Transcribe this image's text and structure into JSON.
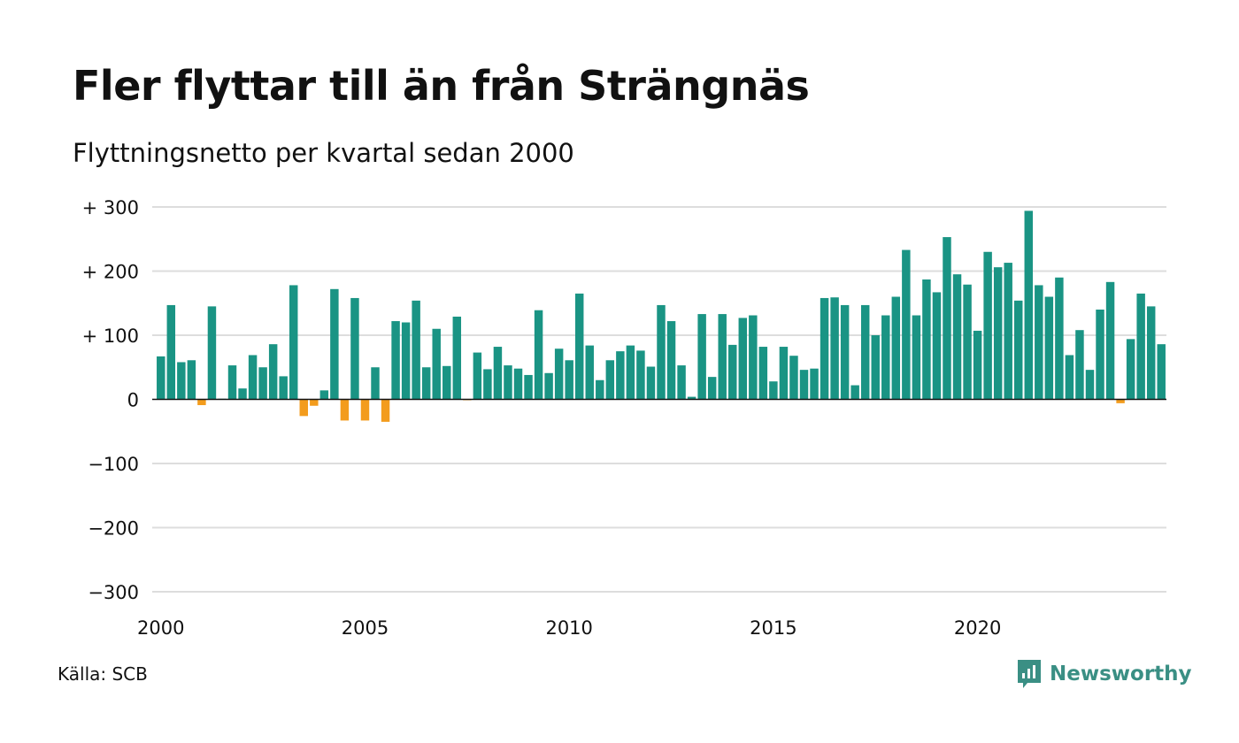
{
  "title": "Fler flyttar till än från Strängnäs",
  "subtitle": "Flyttningsnetto per kvartal sedan 2000",
  "source": "Källa: SCB",
  "brand": {
    "name": "Newsworthy",
    "icon": "newsworthy-logo-icon"
  },
  "colors": {
    "positive": "#1a9484",
    "negative": "#f39c1d",
    "grid": "#dddddd",
    "zero_line": "#111111",
    "brand": "#3a8f84"
  },
  "chart_data": {
    "type": "bar",
    "title": "Fler flyttar till än från Strängnäs",
    "subtitle": "Flyttningsnetto per kvartal sedan 2000",
    "xlabel": "",
    "ylabel": "",
    "ylim": [
      -300,
      300
    ],
    "grid": true,
    "yticks": [
      300,
      200,
      100,
      0,
      -100,
      -200,
      -300
    ],
    "ytick_labels": [
      "+ 300",
      "+ 200",
      "+ 100",
      "0",
      "−100",
      "−200",
      "−300"
    ],
    "xticks": [
      "2000",
      "2005",
      "2010",
      "2015",
      "2020"
    ],
    "start": "2000 Q1",
    "values": [
      67,
      147,
      58,
      61,
      -9,
      145,
      1,
      53,
      17,
      69,
      50,
      86,
      36,
      178,
      -26,
      -10,
      14,
      172,
      -33,
      158,
      -33,
      50,
      -35,
      122,
      120,
      154,
      50,
      110,
      52,
      129,
      -1,
      73,
      47,
      82,
      53,
      48,
      38,
      139,
      41,
      79,
      61,
      165,
      84,
      30,
      61,
      75,
      84,
      76,
      51,
      147,
      122,
      53,
      4,
      133,
      35,
      133,
      85,
      127,
      131,
      82,
      28,
      82,
      68,
      46,
      48,
      158,
      159,
      147,
      22,
      147,
      100,
      131,
      160,
      233,
      131,
      187,
      167,
      253,
      195,
      179,
      107,
      230,
      206,
      213,
      154,
      294,
      178,
      160,
      190,
      69,
      108,
      46,
      140,
      183,
      -6,
      94,
      165,
      145,
      86
    ]
  }
}
